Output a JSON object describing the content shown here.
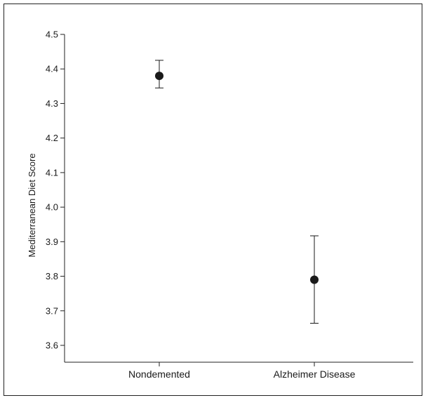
{
  "chart_data": {
    "type": "scatter",
    "title": "",
    "xlabel": "",
    "ylabel": "Mediterranean Diet Score",
    "categories": [
      "Nondemented",
      "Alzheimer Disease"
    ],
    "series": [
      {
        "values": [
          4.38,
          3.79
        ],
        "error_upper": [
          4.425,
          3.917
        ],
        "error_lower": [
          4.345,
          3.664
        ]
      }
    ],
    "ylim": [
      3.55,
      4.5
    ],
    "yticks": [
      "3.6",
      "3.7",
      "3.8",
      "3.9",
      "4.0",
      "4.1",
      "4.2",
      "4.3",
      "4.4",
      "4.5"
    ],
    "grid": false,
    "colors": {
      "marker": "#1a1a1a",
      "axis": "#222222"
    }
  }
}
